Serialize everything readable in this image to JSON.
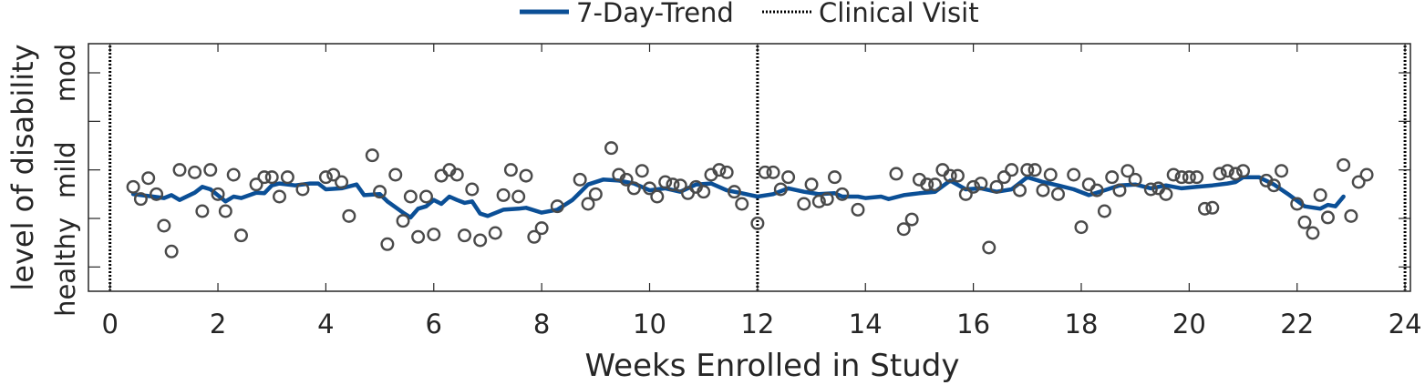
{
  "legend": {
    "trend_label": "7-Day-Trend",
    "visit_label": "Clinical Visit",
    "placement": "top-center"
  },
  "colors": {
    "trend": "#0b4f96",
    "markers": "#4a4a4a",
    "axes": "#262626",
    "visit_line": "#000000"
  },
  "chart_data": {
    "type": "scatter",
    "xlabel": "Weeks Enrolled in Study",
    "ylabel": "level of disability",
    "xlim": [
      -0.4,
      24.1
    ],
    "ylim": [
      -0.5,
      4.6
    ],
    "xticks": [
      0,
      2,
      4,
      6,
      8,
      10,
      12,
      14,
      16,
      18,
      20,
      22,
      24
    ],
    "yticks": [
      0,
      1,
      2,
      3,
      4
    ],
    "ytick_labels": [
      {
        "text": "healthy",
        "center": 0
      },
      {
        "text": "mild",
        "center": 2
      },
      {
        "text": "mod",
        "center": 4
      }
    ],
    "grid": false,
    "clinical_visits": [
      0,
      12,
      24
    ],
    "daily_scores": [
      {
        "x": 0.43,
        "y": 1.65
      },
      {
        "x": 0.57,
        "y": 1.4
      },
      {
        "x": 0.71,
        "y": 1.83
      },
      {
        "x": 0.86,
        "y": 1.5
      },
      {
        "x": 1.0,
        "y": 0.85
      },
      {
        "x": 1.14,
        "y": 0.32
      },
      {
        "x": 1.29,
        "y": 2.0
      },
      {
        "x": 1.57,
        "y": 1.95
      },
      {
        "x": 1.71,
        "y": 1.15
      },
      {
        "x": 1.86,
        "y": 2.0
      },
      {
        "x": 2.0,
        "y": 1.5
      },
      {
        "x": 2.14,
        "y": 1.15
      },
      {
        "x": 2.29,
        "y": 1.9
      },
      {
        "x": 2.43,
        "y": 0.65
      },
      {
        "x": 2.71,
        "y": 1.7
      },
      {
        "x": 2.86,
        "y": 1.85
      },
      {
        "x": 3.0,
        "y": 1.85
      },
      {
        "x": 3.14,
        "y": 1.45
      },
      {
        "x": 3.29,
        "y": 1.85
      },
      {
        "x": 3.57,
        "y": 1.6
      },
      {
        "x": 4.0,
        "y": 1.85
      },
      {
        "x": 4.14,
        "y": 1.9
      },
      {
        "x": 4.29,
        "y": 1.75
      },
      {
        "x": 4.43,
        "y": 1.05
      },
      {
        "x": 4.86,
        "y": 2.3
      },
      {
        "x": 5.0,
        "y": 1.55
      },
      {
        "x": 5.14,
        "y": 0.47
      },
      {
        "x": 5.29,
        "y": 1.9
      },
      {
        "x": 5.43,
        "y": 0.95
      },
      {
        "x": 5.57,
        "y": 1.45
      },
      {
        "x": 5.71,
        "y": 0.62
      },
      {
        "x": 5.86,
        "y": 1.45
      },
      {
        "x": 6.0,
        "y": 0.67
      },
      {
        "x": 6.14,
        "y": 1.88
      },
      {
        "x": 6.29,
        "y": 2.0
      },
      {
        "x": 6.43,
        "y": 1.9
      },
      {
        "x": 6.57,
        "y": 0.65
      },
      {
        "x": 6.71,
        "y": 1.6
      },
      {
        "x": 6.86,
        "y": 0.55
      },
      {
        "x": 7.14,
        "y": 0.7
      },
      {
        "x": 7.29,
        "y": 1.48
      },
      {
        "x": 7.43,
        "y": 2.0
      },
      {
        "x": 7.57,
        "y": 1.45
      },
      {
        "x": 7.71,
        "y": 1.88
      },
      {
        "x": 7.86,
        "y": 0.62
      },
      {
        "x": 8.0,
        "y": 0.8
      },
      {
        "x": 8.29,
        "y": 1.25
      },
      {
        "x": 8.71,
        "y": 1.8
      },
      {
        "x": 8.86,
        "y": 1.3
      },
      {
        "x": 9.0,
        "y": 1.5
      },
      {
        "x": 9.29,
        "y": 2.45
      },
      {
        "x": 9.43,
        "y": 1.9
      },
      {
        "x": 9.57,
        "y": 1.8
      },
      {
        "x": 9.71,
        "y": 1.62
      },
      {
        "x": 9.86,
        "y": 1.98
      },
      {
        "x": 10.0,
        "y": 1.62
      },
      {
        "x": 10.14,
        "y": 1.45
      },
      {
        "x": 10.29,
        "y": 1.75
      },
      {
        "x": 10.43,
        "y": 1.7
      },
      {
        "x": 10.57,
        "y": 1.68
      },
      {
        "x": 10.71,
        "y": 1.52
      },
      {
        "x": 10.86,
        "y": 1.65
      },
      {
        "x": 11.0,
        "y": 1.55
      },
      {
        "x": 11.14,
        "y": 1.9
      },
      {
        "x": 11.29,
        "y": 2.0
      },
      {
        "x": 11.43,
        "y": 1.95
      },
      {
        "x": 11.57,
        "y": 1.55
      },
      {
        "x": 11.71,
        "y": 1.3
      },
      {
        "x": 12.0,
        "y": 0.9
      },
      {
        "x": 12.14,
        "y": 1.95
      },
      {
        "x": 12.29,
        "y": 1.95
      },
      {
        "x": 12.43,
        "y": 1.6
      },
      {
        "x": 12.57,
        "y": 1.85
      },
      {
        "x": 12.86,
        "y": 1.3
      },
      {
        "x": 13.0,
        "y": 1.7
      },
      {
        "x": 13.14,
        "y": 1.35
      },
      {
        "x": 13.29,
        "y": 1.4
      },
      {
        "x": 13.43,
        "y": 1.85
      },
      {
        "x": 13.57,
        "y": 1.5
      },
      {
        "x": 13.86,
        "y": 1.18
      },
      {
        "x": 14.57,
        "y": 1.92
      },
      {
        "x": 14.71,
        "y": 0.78
      },
      {
        "x": 14.86,
        "y": 0.98
      },
      {
        "x": 15.0,
        "y": 1.8
      },
      {
        "x": 15.14,
        "y": 1.7
      },
      {
        "x": 15.29,
        "y": 1.7
      },
      {
        "x": 15.43,
        "y": 2.0
      },
      {
        "x": 15.57,
        "y": 1.88
      },
      {
        "x": 15.71,
        "y": 1.88
      },
      {
        "x": 15.86,
        "y": 1.5
      },
      {
        "x": 16.0,
        "y": 1.65
      },
      {
        "x": 16.14,
        "y": 1.72
      },
      {
        "x": 16.29,
        "y": 0.4
      },
      {
        "x": 16.43,
        "y": 1.65
      },
      {
        "x": 16.57,
        "y": 1.85
      },
      {
        "x": 16.71,
        "y": 2.0
      },
      {
        "x": 16.86,
        "y": 1.58
      },
      {
        "x": 17.0,
        "y": 2.0
      },
      {
        "x": 17.14,
        "y": 2.0
      },
      {
        "x": 17.29,
        "y": 1.58
      },
      {
        "x": 17.43,
        "y": 1.9
      },
      {
        "x": 17.57,
        "y": 1.5
      },
      {
        "x": 17.86,
        "y": 1.9
      },
      {
        "x": 18.0,
        "y": 0.82
      },
      {
        "x": 18.14,
        "y": 1.7
      },
      {
        "x": 18.29,
        "y": 1.58
      },
      {
        "x": 18.43,
        "y": 1.15
      },
      {
        "x": 18.57,
        "y": 1.85
      },
      {
        "x": 18.71,
        "y": 1.58
      },
      {
        "x": 18.86,
        "y": 1.98
      },
      {
        "x": 19.0,
        "y": 1.8
      },
      {
        "x": 19.29,
        "y": 1.6
      },
      {
        "x": 19.43,
        "y": 1.62
      },
      {
        "x": 19.57,
        "y": 1.5
      },
      {
        "x": 19.71,
        "y": 1.9
      },
      {
        "x": 19.86,
        "y": 1.85
      },
      {
        "x": 20.0,
        "y": 1.85
      },
      {
        "x": 20.14,
        "y": 1.85
      },
      {
        "x": 20.29,
        "y": 1.2
      },
      {
        "x": 20.43,
        "y": 1.22
      },
      {
        "x": 20.57,
        "y": 1.92
      },
      {
        "x": 20.71,
        "y": 1.98
      },
      {
        "x": 20.86,
        "y": 1.92
      },
      {
        "x": 21.0,
        "y": 1.98
      },
      {
        "x": 21.43,
        "y": 1.78
      },
      {
        "x": 21.57,
        "y": 1.68
      },
      {
        "x": 21.71,
        "y": 1.98
      },
      {
        "x": 22.0,
        "y": 1.3
      },
      {
        "x": 22.14,
        "y": 0.92
      },
      {
        "x": 22.29,
        "y": 0.7
      },
      {
        "x": 22.43,
        "y": 1.48
      },
      {
        "x": 22.57,
        "y": 1.02
      },
      {
        "x": 22.86,
        "y": 2.1
      },
      {
        "x": 23.0,
        "y": 1.05
      },
      {
        "x": 23.14,
        "y": 1.75
      },
      {
        "x": 23.29,
        "y": 1.9
      }
    ],
    "trend": [
      {
        "x": 0.43,
        "y": 1.5
      },
      {
        "x": 0.8,
        "y": 1.45
      },
      {
        "x": 1.0,
        "y": 1.42
      },
      {
        "x": 1.14,
        "y": 1.48
      },
      {
        "x": 1.29,
        "y": 1.38
      },
      {
        "x": 1.57,
        "y": 1.53
      },
      {
        "x": 1.71,
        "y": 1.65
      },
      {
        "x": 1.86,
        "y": 1.6
      },
      {
        "x": 2.14,
        "y": 1.35
      },
      {
        "x": 2.29,
        "y": 1.45
      },
      {
        "x": 2.43,
        "y": 1.42
      },
      {
        "x": 2.71,
        "y": 1.53
      },
      {
        "x": 2.86,
        "y": 1.52
      },
      {
        "x": 3.0,
        "y": 1.68
      },
      {
        "x": 3.14,
        "y": 1.72
      },
      {
        "x": 3.43,
        "y": 1.68
      },
      {
        "x": 3.71,
        "y": 1.72
      },
      {
        "x": 3.86,
        "y": 1.72
      },
      {
        "x": 4.0,
        "y": 1.6
      },
      {
        "x": 4.29,
        "y": 1.62
      },
      {
        "x": 4.57,
        "y": 1.7
      },
      {
        "x": 4.71,
        "y": 1.48
      },
      {
        "x": 5.0,
        "y": 1.5
      },
      {
        "x": 5.14,
        "y": 1.35
      },
      {
        "x": 5.43,
        "y": 1.12
      },
      {
        "x": 5.57,
        "y": 1.02
      },
      {
        "x": 5.71,
        "y": 1.2
      },
      {
        "x": 5.86,
        "y": 1.25
      },
      {
        "x": 6.0,
        "y": 1.38
      },
      {
        "x": 6.14,
        "y": 1.3
      },
      {
        "x": 6.29,
        "y": 1.45
      },
      {
        "x": 6.43,
        "y": 1.38
      },
      {
        "x": 6.57,
        "y": 1.32
      },
      {
        "x": 6.71,
        "y": 1.35
      },
      {
        "x": 6.86,
        "y": 1.1
      },
      {
        "x": 7.0,
        "y": 1.05
      },
      {
        "x": 7.29,
        "y": 1.18
      },
      {
        "x": 7.57,
        "y": 1.2
      },
      {
        "x": 7.71,
        "y": 1.22
      },
      {
        "x": 8.0,
        "y": 1.12
      },
      {
        "x": 8.29,
        "y": 1.18
      },
      {
        "x": 8.57,
        "y": 1.38
      },
      {
        "x": 8.86,
        "y": 1.7
      },
      {
        "x": 9.14,
        "y": 1.8
      },
      {
        "x": 9.43,
        "y": 1.78
      },
      {
        "x": 9.71,
        "y": 1.72
      },
      {
        "x": 10.0,
        "y": 1.58
      },
      {
        "x": 10.29,
        "y": 1.62
      },
      {
        "x": 10.57,
        "y": 1.55
      },
      {
        "x": 10.86,
        "y": 1.7
      },
      {
        "x": 11.14,
        "y": 1.72
      },
      {
        "x": 11.43,
        "y": 1.58
      },
      {
        "x": 11.71,
        "y": 1.52
      },
      {
        "x": 12.0,
        "y": 1.45
      },
      {
        "x": 12.29,
        "y": 1.5
      },
      {
        "x": 12.57,
        "y": 1.62
      },
      {
        "x": 12.86,
        "y": 1.55
      },
      {
        "x": 13.14,
        "y": 1.5
      },
      {
        "x": 13.43,
        "y": 1.52
      },
      {
        "x": 13.57,
        "y": 1.45
      },
      {
        "x": 13.86,
        "y": 1.45
      },
      {
        "x": 14.0,
        "y": 1.42
      },
      {
        "x": 14.29,
        "y": 1.45
      },
      {
        "x": 14.43,
        "y": 1.4
      },
      {
        "x": 14.71,
        "y": 1.48
      },
      {
        "x": 15.0,
        "y": 1.52
      },
      {
        "x": 15.29,
        "y": 1.55
      },
      {
        "x": 15.57,
        "y": 1.78
      },
      {
        "x": 15.86,
        "y": 1.6
      },
      {
        "x": 16.14,
        "y": 1.62
      },
      {
        "x": 16.43,
        "y": 1.55
      },
      {
        "x": 16.71,
        "y": 1.6
      },
      {
        "x": 17.0,
        "y": 1.85
      },
      {
        "x": 17.29,
        "y": 1.75
      },
      {
        "x": 17.57,
        "y": 1.68
      },
      {
        "x": 17.86,
        "y": 1.6
      },
      {
        "x": 18.14,
        "y": 1.48
      },
      {
        "x": 18.43,
        "y": 1.58
      },
      {
        "x": 18.71,
        "y": 1.68
      },
      {
        "x": 19.0,
        "y": 1.7
      },
      {
        "x": 19.29,
        "y": 1.62
      },
      {
        "x": 19.57,
        "y": 1.68
      },
      {
        "x": 19.86,
        "y": 1.62
      },
      {
        "x": 20.14,
        "y": 1.65
      },
      {
        "x": 20.43,
        "y": 1.68
      },
      {
        "x": 20.71,
        "y": 1.72
      },
      {
        "x": 20.86,
        "y": 1.75
      },
      {
        "x": 21.0,
        "y": 1.85
      },
      {
        "x": 21.29,
        "y": 1.85
      },
      {
        "x": 21.57,
        "y": 1.7
      },
      {
        "x": 21.86,
        "y": 1.48
      },
      {
        "x": 22.14,
        "y": 1.25
      },
      {
        "x": 22.43,
        "y": 1.2
      },
      {
        "x": 22.57,
        "y": 1.28
      },
      {
        "x": 22.71,
        "y": 1.25
      },
      {
        "x": 22.86,
        "y": 1.45
      }
    ]
  }
}
